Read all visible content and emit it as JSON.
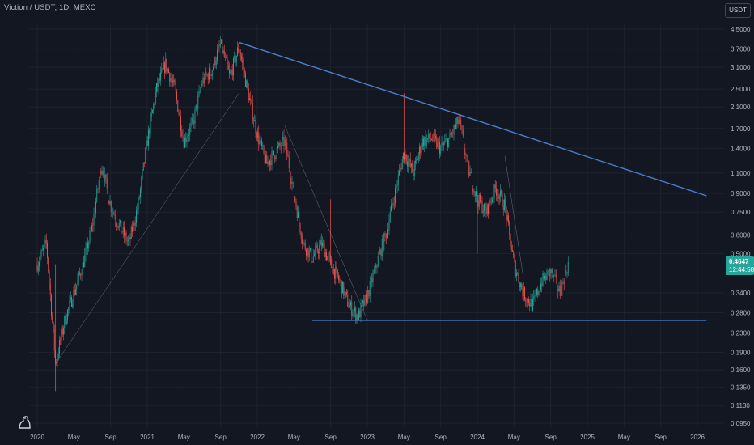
{
  "header": {
    "symbol": "Viction / USDT, 1D, MEXC",
    "currency": "USDT"
  },
  "last_price": {
    "value": "0.4647",
    "countdown": "12:44:58"
  },
  "colors": {
    "background": "#131722",
    "up_candle": "#26a69a",
    "down_candle": "#ef5350",
    "trendline": "#2962ff",
    "grid": "#1e222d"
  },
  "chart_data": {
    "type": "candlestick",
    "scale": "log",
    "y_ticks": [
      "4.5000",
      "3.7000",
      "3.1000",
      "2.5000",
      "2.1000",
      "1.7000",
      "1.4000",
      "1.1000",
      "0.9000",
      "0.7500",
      "0.6000",
      "0.5000",
      "0.3400",
      "0.2800",
      "0.2300",
      "0.1900",
      "0.1600",
      "0.1350",
      "0.1130",
      "0.0950"
    ],
    "x_ticks": [
      "2020",
      "May",
      "Sep",
      "2021",
      "May",
      "Sep",
      "2022",
      "May",
      "Sep",
      "2023",
      "May",
      "Sep",
      "2024",
      "May",
      "Sep",
      "2025",
      "May",
      "Sep",
      "2026"
    ],
    "ylim": [
      0.085,
      5.2
    ],
    "price_path": [
      [
        "2020-01",
        0.45
      ],
      [
        "2020-02",
        0.55
      ],
      [
        "2020-03",
        0.17
      ],
      [
        "2020-04",
        0.26
      ],
      [
        "2020-05",
        0.34
      ],
      [
        "2020-06",
        0.45
      ],
      [
        "2020-07",
        0.65
      ],
      [
        "2020-08",
        1.2
      ],
      [
        "2020-09",
        0.8
      ],
      [
        "2020-10",
        0.65
      ],
      [
        "2020-11",
        0.55
      ],
      [
        "2020-12",
        0.8
      ],
      [
        "2021-01",
        1.5
      ],
      [
        "2021-02",
        2.5
      ],
      [
        "2021-03",
        3.2
      ],
      [
        "2021-04",
        2.5
      ],
      [
        "2021-05",
        1.5
      ],
      [
        "2021-06",
        1.8
      ],
      [
        "2021-07",
        2.7
      ],
      [
        "2021-08",
        3.0
      ],
      [
        "2021-09",
        3.9
      ],
      [
        "2021-10",
        2.8
      ],
      [
        "2021-11",
        3.8
      ],
      [
        "2021-12",
        2.4
      ],
      [
        "2022-01",
        1.6
      ],
      [
        "2022-02",
        1.2
      ],
      [
        "2022-03",
        1.35
      ],
      [
        "2022-04",
        1.5
      ],
      [
        "2022-05",
        0.9
      ],
      [
        "2022-06",
        0.55
      ],
      [
        "2022-07",
        0.48
      ],
      [
        "2022-08",
        0.55
      ],
      [
        "2022-09",
        0.45
      ],
      [
        "2022-10",
        0.38
      ],
      [
        "2022-11",
        0.3
      ],
      [
        "2022-12",
        0.27
      ],
      [
        "2023-01",
        0.33
      ],
      [
        "2023-02",
        0.45
      ],
      [
        "2023-03",
        0.6
      ],
      [
        "2023-04",
        0.9
      ],
      [
        "2023-05",
        1.35
      ],
      [
        "2023-06",
        1.1
      ],
      [
        "2023-07",
        1.5
      ],
      [
        "2023-08",
        1.55
      ],
      [
        "2023-09",
        1.4
      ],
      [
        "2023-10",
        1.55
      ],
      [
        "2023-11",
        1.85
      ],
      [
        "2023-12",
        1.15
      ],
      [
        "2024-01",
        0.85
      ],
      [
        "2024-02",
        0.75
      ],
      [
        "2024-03",
        0.95
      ],
      [
        "2024-04",
        0.8
      ],
      [
        "2024-05",
        0.45
      ],
      [
        "2024-06",
        0.34
      ],
      [
        "2024-07",
        0.3
      ],
      [
        "2024-08",
        0.38
      ],
      [
        "2024-09",
        0.42
      ],
      [
        "2024-10",
        0.34
      ],
      [
        "2024-11",
        0.4647
      ]
    ],
    "trendlines": [
      {
        "name": "descending resistance",
        "from": [
          "2021-11",
          3.95
        ],
        "to": [
          "2026-02",
          0.88
        ]
      },
      {
        "name": "horizontal support",
        "from": [
          "2022-07",
          0.26
        ],
        "to": [
          "2026-02",
          0.26
        ]
      },
      {
        "name": "rising support",
        "from": [
          "2020-03",
          0.17
        ],
        "to": [
          "2021-11",
          2.4
        ]
      },
      {
        "name": "2022 descending line",
        "from": [
          "2022-04",
          1.75
        ],
        "to": [
          "2023-01",
          0.26
        ]
      },
      {
        "name": "2024 descending line",
        "from": [
          "2024-04",
          1.3
        ],
        "to": [
          "2024-06",
          0.4
        ]
      }
    ],
    "grid": true,
    "legend": "none"
  }
}
